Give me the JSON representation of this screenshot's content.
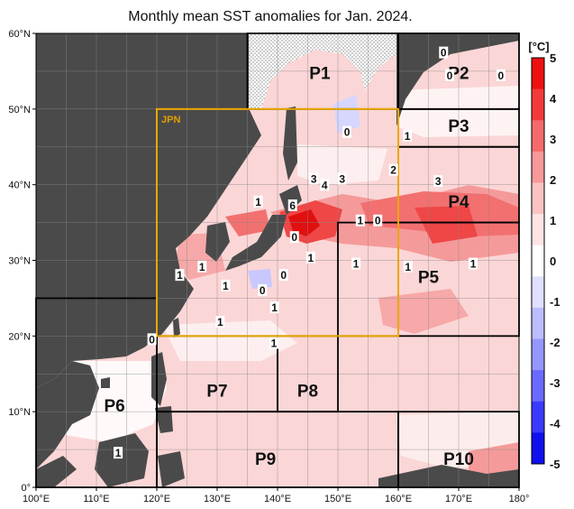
{
  "title": "Monthly mean SST anomalies for Jan. 2024.",
  "colors": {
    "land": "#4a4a4a",
    "ice": "#d8d8d8",
    "jpn_box": "#e8a800",
    "region_border": "#000000"
  },
  "map": {
    "lon_range": [
      100,
      180
    ],
    "lat_range": [
      0,
      60
    ],
    "lon_ticks": [
      "100°E",
      "110°E",
      "120°E",
      "130°E",
      "140°E",
      "150°E",
      "160°E",
      "170°E",
      "180°"
    ],
    "lat_ticks": [
      "0°",
      "10°N",
      "20°N",
      "30°N",
      "40°N",
      "50°N",
      "60°N"
    ],
    "grid_step_deg": 5
  },
  "jpn_box": {
    "label": "JPN",
    "lon": [
      120,
      160
    ],
    "lat": [
      20,
      50
    ]
  },
  "regions": [
    {
      "label": "P1",
      "lon": [
        135,
        160
      ],
      "lat": [
        50,
        60
      ],
      "label_at": [
        147,
        54
      ]
    },
    {
      "label": "P2",
      "lon": [
        160,
        180
      ],
      "lat": [
        50,
        60
      ],
      "label_at": [
        170,
        54
      ]
    },
    {
      "label": "P3",
      "lon": [
        160,
        180
      ],
      "lat": [
        45,
        50
      ],
      "label_at": [
        170,
        47
      ]
    },
    {
      "label": "P4",
      "lon": [
        160,
        180
      ],
      "lat": [
        35,
        45
      ],
      "label_at": [
        170,
        37
      ]
    },
    {
      "label": "P5",
      "lon": [
        150,
        180
      ],
      "lat": [
        20,
        35
      ],
      "label_at": [
        165,
        27
      ]
    },
    {
      "label": "P6",
      "lon": [
        100,
        120
      ],
      "lat": [
        0,
        25
      ],
      "label_at": [
        113,
        10
      ]
    },
    {
      "label": "P7",
      "lon": [
        120,
        140
      ],
      "lat": [
        10,
        20
      ],
      "label_at": [
        130,
        12
      ]
    },
    {
      "label": "P8",
      "lon": [
        140,
        150
      ],
      "lat": [
        10,
        20
      ],
      "label_at": [
        145,
        12
      ]
    },
    {
      "label": "P9",
      "lon": [
        120,
        160
      ],
      "lat": [
        0,
        10
      ],
      "label_at": [
        138,
        3
      ]
    },
    {
      "label": "P10",
      "lon": [
        160,
        180
      ],
      "lat": [
        0,
        10
      ],
      "label_at": [
        170,
        3
      ]
    }
  ],
  "contour_labels": [
    {
      "text": "0",
      "lon": 167.5,
      "lat": 57.3
    },
    {
      "text": "0",
      "lon": 168.5,
      "lat": 54.3
    },
    {
      "text": "0",
      "lon": 177,
      "lat": 54.3
    },
    {
      "text": "0",
      "lon": 151.5,
      "lat": 46.8
    },
    {
      "text": "1",
      "lon": 161.5,
      "lat": 46.3
    },
    {
      "text": "2",
      "lon": 159.2,
      "lat": 41.8
    },
    {
      "text": "3",
      "lon": 146,
      "lat": 40.6
    },
    {
      "text": "4",
      "lon": 147.8,
      "lat": 39.8
    },
    {
      "text": "3",
      "lon": 150.7,
      "lat": 40.6
    },
    {
      "text": "3",
      "lon": 166.6,
      "lat": 40.3
    },
    {
      "text": "6",
      "lon": 142.5,
      "lat": 37.1
    },
    {
      "text": "1",
      "lon": 136.8,
      "lat": 37.6
    },
    {
      "text": "0",
      "lon": 142.8,
      "lat": 32.9
    },
    {
      "text": "1",
      "lon": 153.7,
      "lat": 35.1
    },
    {
      "text": "0",
      "lon": 156.6,
      "lat": 35.1
    },
    {
      "text": "1",
      "lon": 145.5,
      "lat": 30.2
    },
    {
      "text": "1",
      "lon": 153,
      "lat": 29.4
    },
    {
      "text": "1",
      "lon": 161.6,
      "lat": 29.0
    },
    {
      "text": "1",
      "lon": 172.4,
      "lat": 29.4
    },
    {
      "text": "1",
      "lon": 127.5,
      "lat": 29.0
    },
    {
      "text": "1",
      "lon": 123.8,
      "lat": 27.9
    },
    {
      "text": "0",
      "lon": 141,
      "lat": 27.9
    },
    {
      "text": "0",
      "lon": 137.5,
      "lat": 25.9
    },
    {
      "text": "1",
      "lon": 131.4,
      "lat": 26.5
    },
    {
      "text": "1",
      "lon": 139.5,
      "lat": 23.6
    },
    {
      "text": "1",
      "lon": 130.5,
      "lat": 21.7
    },
    {
      "text": "0",
      "lon": 119.2,
      "lat": 19.4
    },
    {
      "text": "1",
      "lon": 139.4,
      "lat": 18.9
    },
    {
      "text": "1",
      "lon": 113.6,
      "lat": 4.4
    }
  ],
  "colorbar": {
    "unit": "[°C]",
    "ticks": [
      "5",
      "4",
      "3",
      "2",
      "1",
      "0",
      "-1",
      "-2",
      "-3",
      "-4",
      "-5"
    ],
    "colors": [
      "#ee1010",
      "#f23a3a",
      "#f56a6a",
      "#f89898",
      "#fbc2c2",
      "#fde4e4",
      "#ffffff",
      "#dfe0ff",
      "#bcbcff",
      "#9696ff",
      "#6a6aff",
      "#3a3aff",
      "#1010ee"
    ]
  }
}
